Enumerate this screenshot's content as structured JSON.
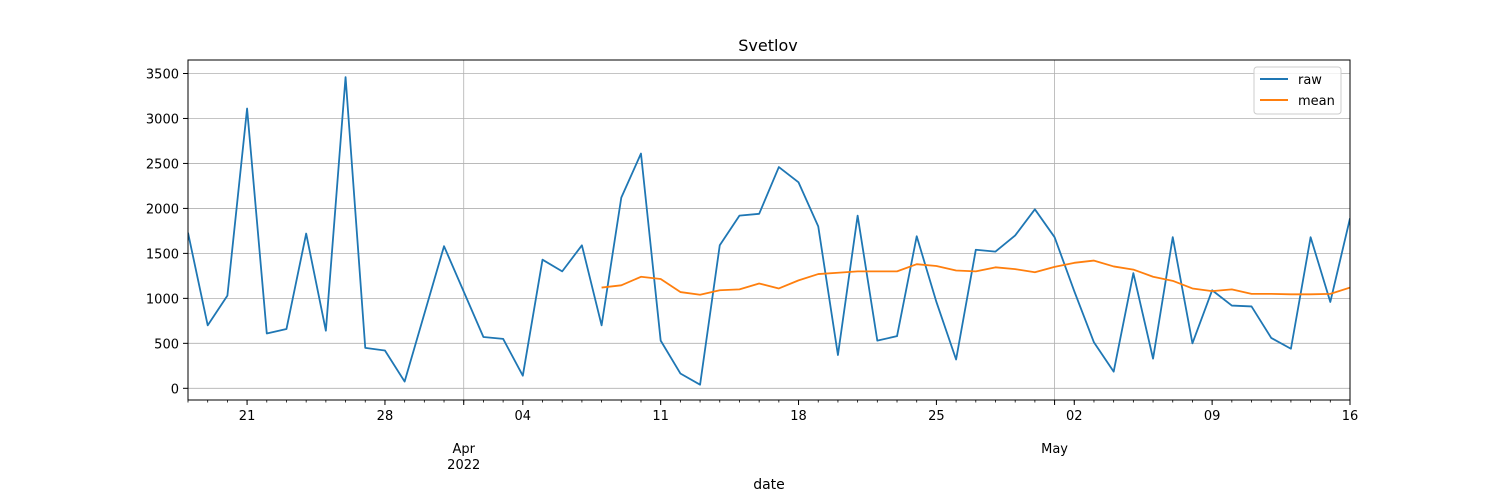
{
  "chart_data": {
    "type": "line",
    "title": "Svetlov",
    "xlabel": "date",
    "ylabel": "",
    "x_start": "2022-03-18",
    "x_end": "2022-05-16",
    "ylim": [
      -130,
      3650
    ],
    "grid": true,
    "legend_position": "top-right",
    "y_ticks": [
      0,
      500,
      1000,
      1500,
      2000,
      2500,
      3000,
      3500
    ],
    "x_tick_labels": [
      {
        "date": "2022-03-21",
        "label": "21"
      },
      {
        "date": "2022-03-28",
        "label": "28"
      },
      {
        "date": "2022-04-01",
        "label": "Apr",
        "sublabel": "2022",
        "major": true
      },
      {
        "date": "2022-04-04",
        "label": "04"
      },
      {
        "date": "2022-04-11",
        "label": "11"
      },
      {
        "date": "2022-04-18",
        "label": "18"
      },
      {
        "date": "2022-04-25",
        "label": "25"
      },
      {
        "date": "2022-05-01",
        "label": "May",
        "major": true
      },
      {
        "date": "2022-05-02",
        "label": "02"
      },
      {
        "date": "2022-05-09",
        "label": "09"
      },
      {
        "date": "2022-05-16",
        "label": "16"
      }
    ],
    "series": [
      {
        "name": "raw",
        "color": "#1f77b4",
        "points": [
          [
            "2022-03-18",
            1730
          ],
          [
            "2022-03-19",
            700
          ],
          [
            "2022-03-20",
            1030
          ],
          [
            "2022-03-21",
            3110
          ],
          [
            "2022-03-22",
            610
          ],
          [
            "2022-03-23",
            660
          ],
          [
            "2022-03-24",
            1720
          ],
          [
            "2022-03-25",
            640
          ],
          [
            "2022-03-26",
            3460
          ],
          [
            "2022-03-27",
            450
          ],
          [
            "2022-03-28",
            420
          ],
          [
            "2022-03-29",
            75
          ],
          [
            "2022-03-31",
            1580
          ],
          [
            "2022-04-02",
            570
          ],
          [
            "2022-04-03",
            550
          ],
          [
            "2022-04-04",
            140
          ],
          [
            "2022-04-05",
            1430
          ],
          [
            "2022-04-06",
            1300
          ],
          [
            "2022-04-07",
            1590
          ],
          [
            "2022-04-08",
            700
          ],
          [
            "2022-04-09",
            2120
          ],
          [
            "2022-04-10",
            2610
          ],
          [
            "2022-04-11",
            530
          ],
          [
            "2022-04-12",
            165
          ],
          [
            "2022-04-13",
            40
          ],
          [
            "2022-04-14",
            1590
          ],
          [
            "2022-04-15",
            1920
          ],
          [
            "2022-04-16",
            1940
          ],
          [
            "2022-04-17",
            2460
          ],
          [
            "2022-04-18",
            2290
          ],
          [
            "2022-04-19",
            1800
          ],
          [
            "2022-04-20",
            370
          ],
          [
            "2022-04-21",
            1920
          ],
          [
            "2022-04-22",
            530
          ],
          [
            "2022-04-23",
            580
          ],
          [
            "2022-04-24",
            1690
          ],
          [
            "2022-04-25",
            960
          ],
          [
            "2022-04-26",
            320
          ],
          [
            "2022-04-27",
            1540
          ],
          [
            "2022-04-28",
            1520
          ],
          [
            "2022-04-29",
            1700
          ],
          [
            "2022-04-30",
            1990
          ],
          [
            "2022-05-01",
            1680
          ],
          [
            "2022-05-02",
            1080
          ],
          [
            "2022-05-03",
            510
          ],
          [
            "2022-05-04",
            185
          ],
          [
            "2022-05-05",
            1280
          ],
          [
            "2022-05-06",
            330
          ],
          [
            "2022-05-07",
            1680
          ],
          [
            "2022-05-08",
            500
          ],
          [
            "2022-05-09",
            1090
          ],
          [
            "2022-05-10",
            920
          ],
          [
            "2022-05-11",
            910
          ],
          [
            "2022-05-12",
            560
          ],
          [
            "2022-05-13",
            440
          ],
          [
            "2022-05-14",
            1680
          ],
          [
            "2022-05-15",
            960
          ],
          [
            "2022-05-16",
            1890
          ]
        ]
      },
      {
        "name": "mean",
        "color": "#ff7f0e",
        "points": [
          [
            "2022-04-08",
            1120
          ],
          [
            "2022-04-09",
            1145
          ],
          [
            "2022-04-10",
            1240
          ],
          [
            "2022-04-11",
            1215
          ],
          [
            "2022-04-12",
            1070
          ],
          [
            "2022-04-13",
            1040
          ],
          [
            "2022-04-14",
            1090
          ],
          [
            "2022-04-15",
            1100
          ],
          [
            "2022-04-16",
            1165
          ],
          [
            "2022-04-17",
            1110
          ],
          [
            "2022-04-18",
            1200
          ],
          [
            "2022-04-19",
            1270
          ],
          [
            "2022-04-20",
            1285
          ],
          [
            "2022-04-21",
            1300
          ],
          [
            "2022-04-22",
            1300
          ],
          [
            "2022-04-23",
            1300
          ],
          [
            "2022-04-24",
            1380
          ],
          [
            "2022-04-25",
            1360
          ],
          [
            "2022-04-26",
            1310
          ],
          [
            "2022-04-27",
            1300
          ],
          [
            "2022-04-28",
            1345
          ],
          [
            "2022-04-29",
            1325
          ],
          [
            "2022-04-30",
            1290
          ],
          [
            "2022-05-01",
            1350
          ],
          [
            "2022-05-02",
            1395
          ],
          [
            "2022-05-03",
            1420
          ],
          [
            "2022-05-04",
            1355
          ],
          [
            "2022-05-05",
            1320
          ],
          [
            "2022-05-06",
            1240
          ],
          [
            "2022-05-07",
            1195
          ],
          [
            "2022-05-08",
            1110
          ],
          [
            "2022-05-09",
            1080
          ],
          [
            "2022-05-10",
            1100
          ],
          [
            "2022-05-11",
            1050
          ],
          [
            "2022-05-12",
            1050
          ],
          [
            "2022-05-13",
            1045
          ],
          [
            "2022-05-14",
            1045
          ],
          [
            "2022-05-15",
            1050
          ],
          [
            "2022-05-16",
            1120
          ]
        ]
      }
    ]
  }
}
